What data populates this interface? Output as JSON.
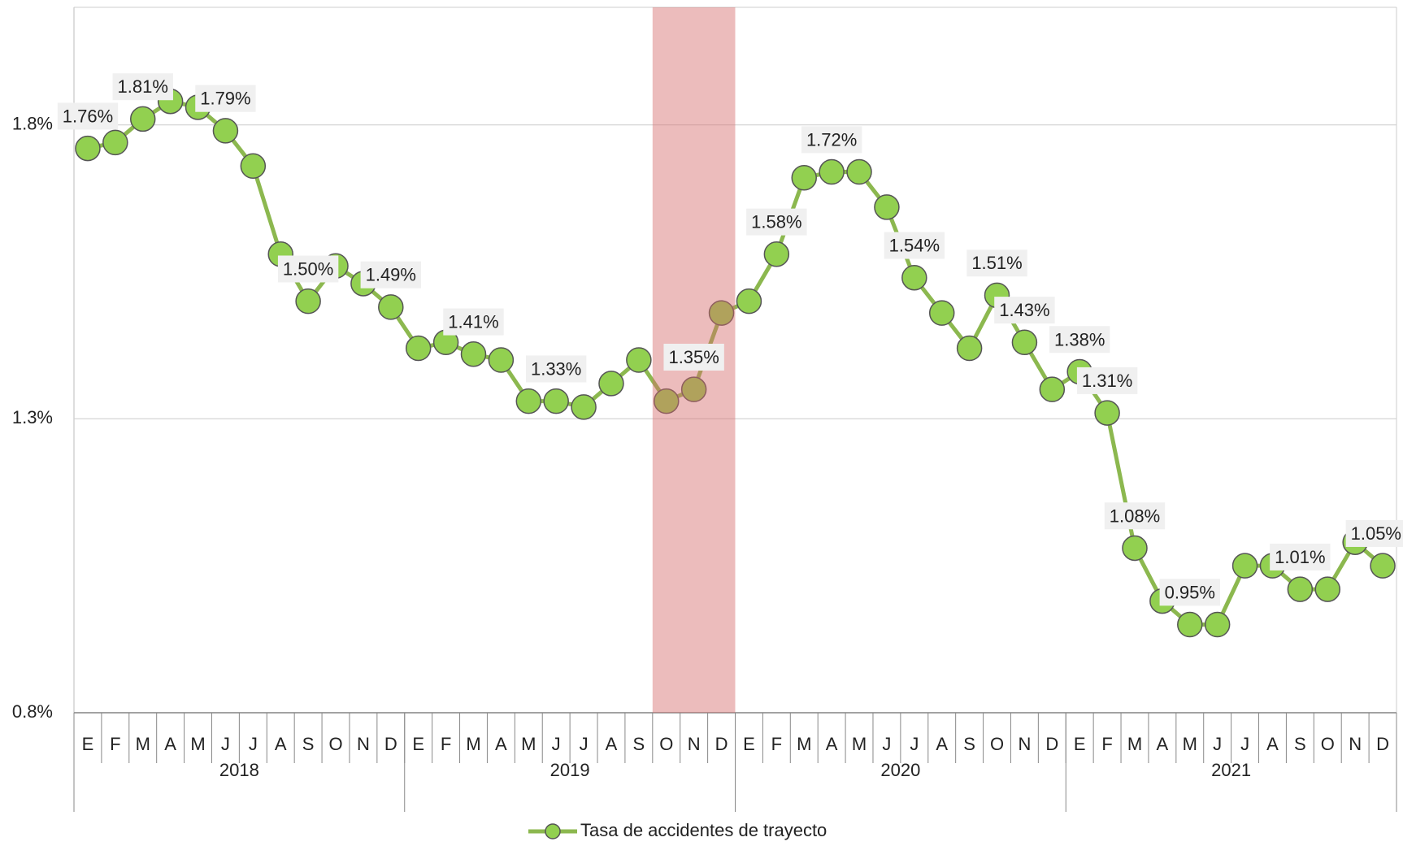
{
  "chart_data": {
    "type": "line",
    "categories": [
      "E",
      "F",
      "M",
      "A",
      "M",
      "J",
      "J",
      "A",
      "S",
      "O",
      "N",
      "D",
      "E",
      "F",
      "M",
      "A",
      "M",
      "J",
      "J",
      "A",
      "S",
      "O",
      "N",
      "D",
      "E",
      "F",
      "M",
      "A",
      "M",
      "J",
      "J",
      "A",
      "S",
      "O",
      "N",
      "D",
      "E",
      "F",
      "M",
      "A",
      "M",
      "J",
      "J",
      "A",
      "S",
      "O",
      "N",
      "D"
    ],
    "groups": [
      {
        "label": "2018",
        "span": 12
      },
      {
        "label": "2019",
        "span": 12
      },
      {
        "label": "2020",
        "span": 12
      },
      {
        "label": "2021",
        "span": 12
      }
    ],
    "series": [
      {
        "name": "Tasa de accidentes de trayecto",
        "color": "#8cb84f",
        "marker_color": "#92d050",
        "values": [
          1.76,
          1.77,
          1.81,
          1.84,
          1.83,
          1.79,
          1.73,
          1.58,
          1.5,
          1.56,
          1.53,
          1.49,
          1.42,
          1.43,
          1.41,
          1.4,
          1.33,
          1.33,
          1.32,
          1.36,
          1.4,
          1.33,
          1.35,
          1.48,
          1.5,
          1.58,
          1.71,
          1.72,
          1.72,
          1.66,
          1.54,
          1.48,
          1.42,
          1.51,
          1.43,
          1.35,
          1.38,
          1.31,
          1.08,
          0.99,
          0.95,
          0.95,
          1.05,
          1.05,
          1.01,
          1.01,
          1.09,
          1.05
        ],
        "value_labels": [
          "1.76%",
          null,
          "1.81%",
          null,
          null,
          "1.79%",
          null,
          null,
          "1.50%",
          null,
          null,
          "1.49%",
          null,
          null,
          "1.41%",
          null,
          null,
          "1.33%",
          null,
          null,
          null,
          null,
          "1.35%",
          null,
          null,
          "1.58%",
          null,
          "1.72%",
          null,
          null,
          "1.54%",
          null,
          null,
          "1.51%",
          "1.43%",
          null,
          "1.38%",
          "1.31%",
          "1.08%",
          null,
          "0.95%",
          null,
          null,
          null,
          "1.01%",
          null,
          null,
          "1.05%"
        ]
      }
    ],
    "ylim": [
      0.8,
      2.0
    ],
    "yticks": [
      {
        "value": 0.8,
        "label": "0.8%"
      },
      {
        "value": 1.3,
        "label": "1.3%"
      },
      {
        "value": 1.8,
        "label": "1.8%"
      }
    ],
    "grid": true,
    "highlight": {
      "from": 21,
      "to": 23,
      "color": "#d46a6a"
    },
    "legend": "bottom"
  }
}
